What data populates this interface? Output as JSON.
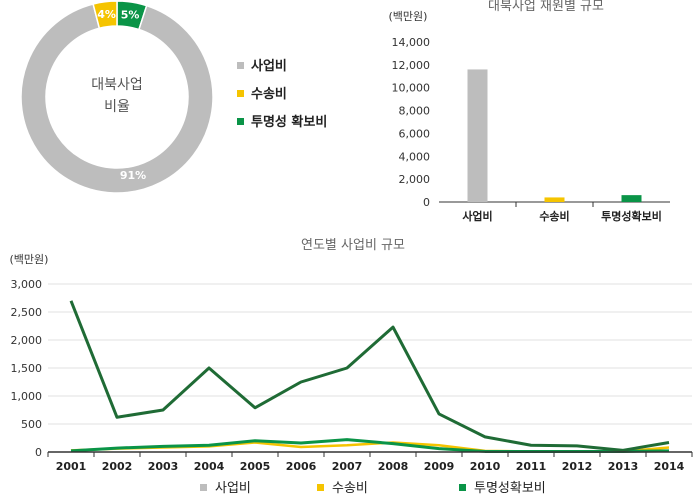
{
  "colors": {
    "business": "#bdbdbd",
    "transport": "#f5c400",
    "transparency": "#0a9447",
    "line_business": "#1f6b35",
    "grid": "#e0e0e0",
    "axis": "#333333"
  },
  "chart_data": [
    {
      "type": "pie",
      "donut": true,
      "center_label": [
        "대북사업",
        "비율"
      ],
      "categories": [
        "사업비",
        "수송비",
        "투명성 확보비"
      ],
      "values": [
        91,
        4,
        5
      ],
      "data_labels": [
        "91%",
        "4%",
        "5%"
      ],
      "legend_position": "right"
    },
    {
      "type": "bar",
      "title": "대북사업 재원별 규모",
      "ylabel": "(백만원)",
      "categories": [
        "사업비",
        "수송비",
        "투명성확보비"
      ],
      "values": [
        11600,
        400,
        600
      ],
      "ylim": [
        0,
        14000
      ],
      "yticks": [
        0,
        2000,
        4000,
        6000,
        8000,
        10000,
        12000,
        14000
      ],
      "ytick_labels": [
        "0",
        "2,000",
        "4,000",
        "6,000",
        "8,000",
        "10,000",
        "12,000",
        "14,000"
      ],
      "grid": false
    },
    {
      "type": "line",
      "title": "연도별 사업비 규모",
      "ylabel": "(백만원)",
      "x": [
        "2001",
        "2002",
        "2003",
        "2004",
        "2005",
        "2006",
        "2007",
        "2008",
        "2009",
        "2010",
        "2011",
        "2012",
        "2013",
        "2014"
      ],
      "ylim": [
        0,
        3000
      ],
      "yticks": [
        0,
        500,
        1000,
        1500,
        2000,
        2500,
        3000
      ],
      "ytick_labels": [
        "0",
        "500",
        "1,000",
        "1,500",
        "2,000",
        "2,500",
        "3,000"
      ],
      "grid": true,
      "legend_position": "bottom",
      "legend": [
        "사업비",
        "수송비",
        "투명성확보비"
      ],
      "series": [
        {
          "name": "사업비",
          "values": [
            2700,
            620,
            750,
            1500,
            790,
            1250,
            1500,
            2230,
            680,
            270,
            120,
            110,
            30,
            170
          ]
        },
        {
          "name": "수송비",
          "values": [
            30,
            60,
            80,
            100,
            170,
            90,
            120,
            170,
            120,
            20,
            10,
            10,
            10,
            80
          ]
        },
        {
          "name": "투명성확보비",
          "values": [
            20,
            70,
            100,
            120,
            200,
            160,
            220,
            150,
            60,
            10,
            10,
            10,
            10,
            20
          ]
        }
      ]
    }
  ]
}
